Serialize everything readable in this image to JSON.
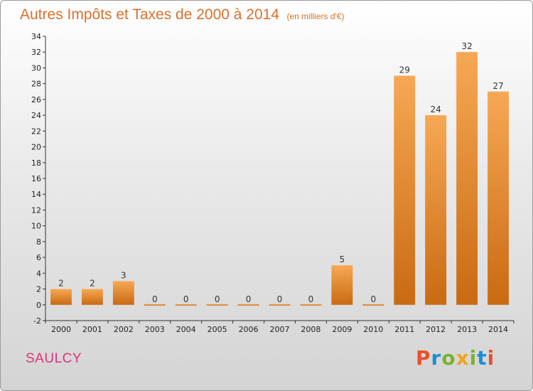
{
  "header": {
    "title": "Autres Impôts et Taxes de 2000 à 2014",
    "subtitle": "(en milliers d'€)"
  },
  "footer": {
    "commune": "SAULCY",
    "brand": "Proxiti"
  },
  "colors": {
    "bar_top": "#f7a855",
    "bar_bottom": "#c96a12",
    "title": "#d9702a",
    "commune": "#e0337a",
    "brand_letters": [
      "#e8522c",
      "#1a8fd6",
      "#7ab22f",
      "#f0a51a",
      "#7ab22f",
      "#1a8fd6",
      "#e8522c"
    ]
  },
  "chart_data": {
    "type": "bar",
    "title": "Autres Impôts et Taxes de 2000 à 2014",
    "subtitle": "(en milliers d'€)",
    "categories": [
      "2000",
      "2001",
      "2002",
      "2003",
      "2004",
      "2005",
      "2006",
      "2007",
      "2008",
      "2009",
      "2010",
      "2011",
      "2012",
      "2013",
      "2014"
    ],
    "values": [
      2,
      2,
      3,
      0,
      0,
      0,
      0,
      0,
      0,
      5,
      0,
      29,
      24,
      32,
      27
    ],
    "ylim": [
      -2,
      34
    ],
    "yticks": [
      -2,
      0,
      2,
      4,
      6,
      8,
      10,
      12,
      14,
      16,
      18,
      20,
      22,
      24,
      26,
      28,
      30,
      32,
      34
    ],
    "grid": false,
    "legend": "none",
    "xlabel": "",
    "ylabel": ""
  }
}
